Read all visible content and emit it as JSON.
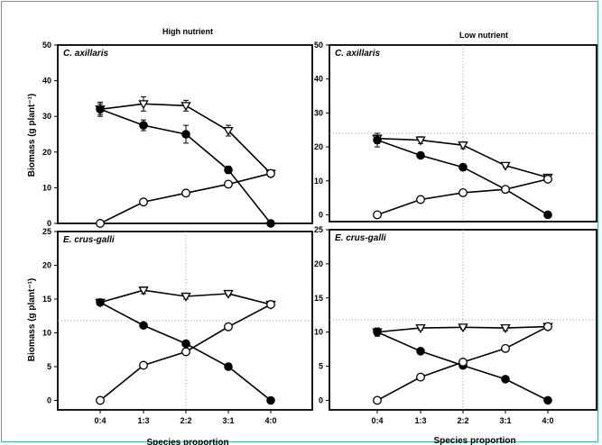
{
  "column_titles": [
    "High nutrient",
    "Low nutrient"
  ],
  "row_species": [
    "C. axillaris",
    "E. crus-galli"
  ],
  "ylabel": "Biomass (g plant⁻¹)",
  "xlabel": "Species proportion",
  "chart_data": [
    {
      "type": "line",
      "title": "High nutrient",
      "panel_label": "C. axillaris",
      "categories": [
        "0:4",
        "1:3",
        "2:2",
        "3:1",
        "4:0"
      ],
      "ylim": [
        0,
        50
      ],
      "yticks": [
        0,
        10,
        20,
        30,
        40,
        50
      ],
      "series": [
        {
          "marker": "triangle-down-open",
          "values": [
            32,
            33.5,
            33,
            26,
            14
          ],
          "error": [
            1.5,
            2,
            1.5,
            1.5,
            1
          ]
        },
        {
          "marker": "circle-filled",
          "values": [
            32,
            27.5,
            25,
            15,
            0
          ],
          "error": [
            2,
            1.5,
            2.5,
            1,
            0.5
          ]
        },
        {
          "marker": "circle-open",
          "values": [
            0,
            6,
            8.5,
            11,
            14
          ],
          "error": [
            0.3,
            0.5,
            0.5,
            0.5,
            0.5
          ]
        }
      ]
    },
    {
      "type": "line",
      "title": "Low nutrient",
      "panel_label": "C. axillaris",
      "categories": [
        "0:4",
        "1:3",
        "2:2",
        "3:1",
        "4:0"
      ],
      "ylim": [
        -2,
        50
      ],
      "yticks": [
        0,
        10,
        20,
        30,
        40,
        50
      ],
      "series": [
        {
          "marker": "triangle-down-open",
          "values": [
            22.5,
            22,
            20.5,
            14.5,
            11
          ],
          "error": [
            1.5,
            1,
            1,
            0.5,
            0.5
          ]
        },
        {
          "marker": "circle-filled",
          "values": [
            22,
            17.5,
            14,
            7.5,
            0
          ],
          "error": [
            2,
            0.5,
            1,
            0.5,
            0.3
          ]
        },
        {
          "marker": "circle-open",
          "values": [
            0,
            4.5,
            6.5,
            7.5,
            10.5
          ],
          "error": [
            0.3,
            0.3,
            0.3,
            0.5,
            0.5
          ]
        }
      ]
    },
    {
      "type": "line",
      "title": "",
      "panel_label": "E. crus-galli",
      "categories": [
        "0:4",
        "1:3",
        "2:2",
        "3:1",
        "4:0"
      ],
      "ylim": [
        -1.4,
        25
      ],
      "yticks": [
        0,
        5,
        10,
        15,
        20,
        25
      ],
      "series": [
        {
          "marker": "triangle-down-open",
          "values": [
            14.5,
            16.3,
            15.4,
            15.8,
            14.2
          ],
          "error": [
            0.4,
            0.5,
            0.4,
            0.3,
            0.3
          ]
        },
        {
          "marker": "circle-filled",
          "values": [
            14.5,
            11.1,
            8.4,
            5,
            0
          ],
          "error": [
            0.3,
            0.3,
            0.3,
            0.2,
            0.2
          ]
        },
        {
          "marker": "circle-open",
          "values": [
            0,
            5.2,
            7.2,
            10.9,
            14.2
          ],
          "error": [
            0.2,
            0.3,
            0.3,
            0.3,
            0.3
          ]
        }
      ]
    },
    {
      "type": "line",
      "title": "",
      "panel_label": "E. crus-galli",
      "categories": [
        "0:4",
        "1:3",
        "2:2",
        "3:1",
        "4:0"
      ],
      "ylim": [
        -1.4,
        25
      ],
      "yticks": [
        0,
        5,
        10,
        15,
        20,
        25
      ],
      "series": [
        {
          "marker": "triangle-down-open",
          "values": [
            10,
            10.6,
            10.7,
            10.6,
            10.8
          ],
          "error": [
            0.6,
            0.3,
            0.3,
            0.4,
            0.3
          ]
        },
        {
          "marker": "circle-filled",
          "values": [
            10,
            7.2,
            5.1,
            3.1,
            0
          ],
          "error": [
            0.3,
            0.2,
            0.2,
            0.2,
            0.2
          ]
        },
        {
          "marker": "circle-open",
          "values": [
            0,
            3.4,
            5.6,
            7.6,
            10.8
          ],
          "error": [
            0.2,
            0.3,
            0.3,
            0.3,
            0.3
          ]
        }
      ]
    }
  ]
}
